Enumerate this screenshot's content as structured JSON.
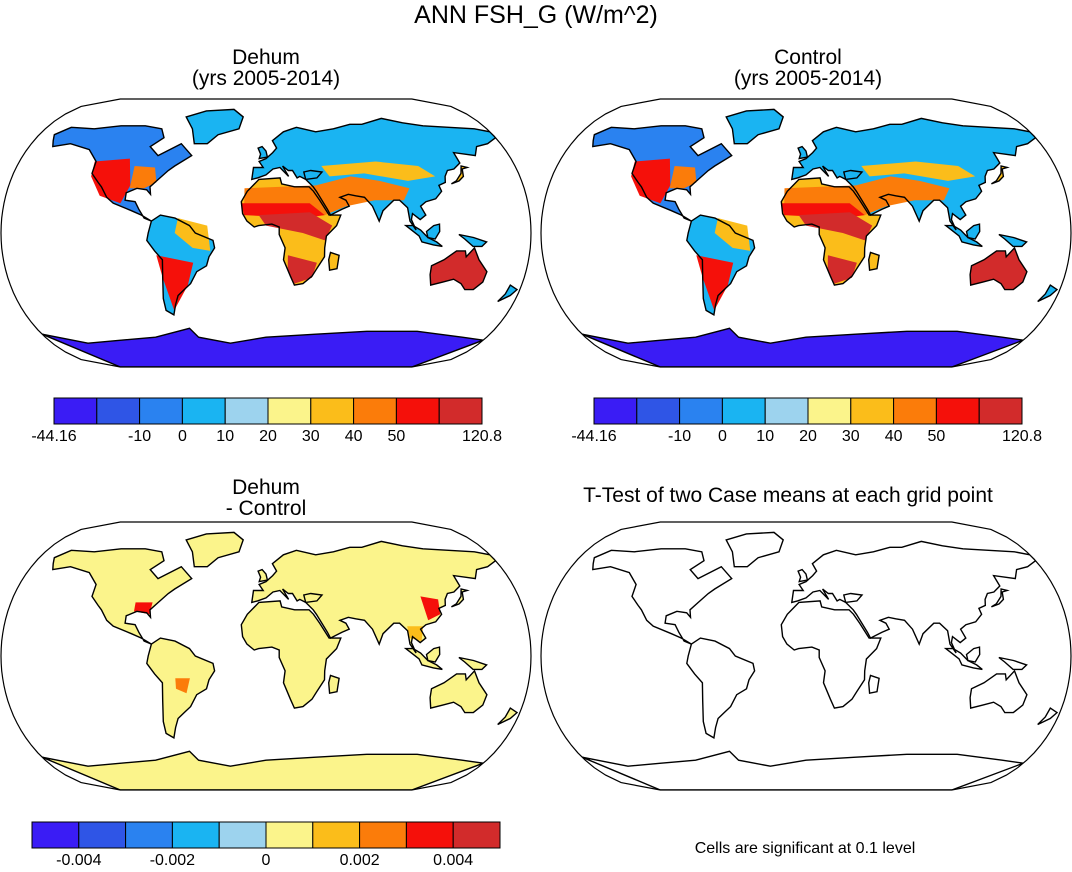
{
  "title": "ANN FSH_G (W/m^2)",
  "panels": [
    {
      "id": "dehum",
      "title_line1": "Dehum",
      "title_line2": "(yrs 2005-2014)"
    },
    {
      "id": "control",
      "title_line1": "Control",
      "title_line2": "(yrs 2005-2014)"
    },
    {
      "id": "diff",
      "title_line1": "Dehum",
      "title_line2": "- Control"
    },
    {
      "id": "ttest",
      "title_line1": "T-Test of two Case means at each grid point"
    }
  ],
  "colorbars": {
    "field": {
      "colors": [
        "#3a1cf5",
        "#2f55e6",
        "#2a82f0",
        "#1ab4f2",
        "#9dd3ee",
        "#fbf48b",
        "#fbbd1a",
        "#fb7c0a",
        "#f5100a",
        "#d22b2b"
      ],
      "labels": [
        "-44.16",
        "-10",
        "0",
        "10",
        "20",
        "30",
        "40",
        "50",
        "120.8"
      ],
      "label_boundaries": [
        0,
        2,
        3,
        4,
        5,
        6,
        7,
        8,
        10
      ]
    },
    "diff": {
      "colors": [
        "#3a1cf5",
        "#2f55e6",
        "#2a82f0",
        "#1ab4f2",
        "#9dd3ee",
        "#fbf48b",
        "#fbbd1a",
        "#fb7c0a",
        "#f5100a",
        "#d22b2b"
      ],
      "labels": [
        "-0.004",
        "-0.002",
        "0",
        "0.002",
        "0.004"
      ],
      "label_boundaries": [
        1,
        3,
        5,
        7,
        9
      ]
    }
  },
  "note": "Cells are significant at 0.1 level"
}
